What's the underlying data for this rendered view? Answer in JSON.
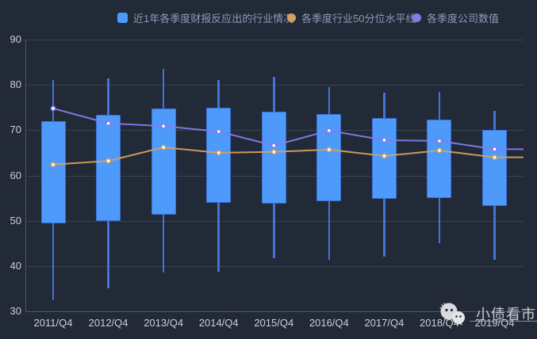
{
  "legend": {
    "items": [
      {
        "label": "近1年各季度财报反应出的行业情况",
        "marker": "square",
        "color": "#4d9afb"
      },
      {
        "label": "各季度行业50分位水平线",
        "marker": "circle",
        "color": "#d2a15e"
      },
      {
        "label": "各季度公司数值",
        "marker": "circle",
        "color": "#817ce9"
      }
    ]
  },
  "watermark": {
    "text": "小债看市",
    "icon": "wechat-chat-bubbles-icon"
  },
  "colors": {
    "background": "#222937",
    "gridline": "#3a4353",
    "axis_line": "#4d586e",
    "axis_text": "#cbd0d9",
    "legend_text": "#8d9cb7",
    "candle_fill": "#4d9afb",
    "candle_border": "#3a70d9",
    "whisker": "#3e74db",
    "median_line": "#d2a15e",
    "company_line": "#817ce9",
    "dot_fill": "#ffffff"
  },
  "chart_data": {
    "type": "candlestick+line",
    "title": "",
    "categories": [
      "2011/Q4",
      "2012/Q4",
      "2013/Q4",
      "2014/Q4",
      "2015/Q4",
      "2016/Q4",
      "2017/Q4",
      "2018/Q4",
      "2019/Q4"
    ],
    "ylim": [
      30,
      90
    ],
    "y_ticks": [
      30,
      40,
      50,
      60,
      70,
      80,
      90
    ],
    "grid": true,
    "legend_position": "top",
    "lines_extend_to_right_edge": true,
    "series": [
      {
        "name": "近1年各季度财报反应出的行业情况",
        "type": "candlestick",
        "data": [
          {
            "low": 32.5,
            "q1": 49.5,
            "q3": 72.0,
            "high": 81.0
          },
          {
            "low": 35.0,
            "q1": 50.0,
            "q3": 73.3,
            "high": 81.5
          },
          {
            "low": 38.5,
            "q1": 51.3,
            "q3": 74.8,
            "high": 83.5
          },
          {
            "low": 38.8,
            "q1": 54.0,
            "q3": 75.0,
            "high": 81.0
          },
          {
            "low": 41.7,
            "q1": 53.8,
            "q3": 74.0,
            "high": 81.8
          },
          {
            "low": 41.4,
            "q1": 54.3,
            "q3": 73.5,
            "high": 79.5
          },
          {
            "low": 42.0,
            "q1": 54.8,
            "q3": 72.7,
            "high": 78.2
          },
          {
            "low": 45.0,
            "q1": 55.0,
            "q3": 72.4,
            "high": 78.5
          },
          {
            "low": 41.3,
            "q1": 53.3,
            "q3": 70.0,
            "high": 74.3
          }
        ]
      },
      {
        "name": "各季度行业50分位水平线",
        "type": "line",
        "values": [
          62.4,
          63.2,
          66.2,
          65.0,
          65.2,
          65.7,
          64.3,
          65.5,
          64.0
        ]
      },
      {
        "name": "各季度公司数值",
        "type": "line",
        "values": [
          74.8,
          71.5,
          70.9,
          69.7,
          66.6,
          69.9,
          67.8,
          67.6,
          65.8
        ]
      }
    ]
  }
}
